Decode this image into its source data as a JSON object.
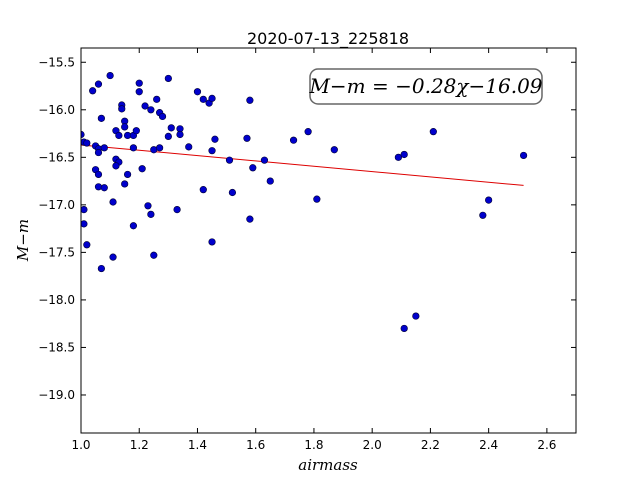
{
  "chart_data": {
    "type": "scatter",
    "title": "2020-07-13_225818",
    "xlabel": "airmass",
    "ylabel": "M−m",
    "xlim": [
      1.0,
      2.7
    ],
    "ylim": [
      -19.4,
      -15.35
    ],
    "y_inverted": true,
    "xticks": [
      1.0,
      1.2,
      1.4,
      1.6,
      1.8,
      2.0,
      2.2,
      2.4,
      2.6
    ],
    "xtick_labels": [
      "1.0",
      "1.2",
      "1.4",
      "1.6",
      "1.8",
      "2.0",
      "2.2",
      "2.4",
      "2.6"
    ],
    "yticks": [
      -15.5,
      -16.0,
      -16.5,
      -17.0,
      -17.5,
      -18.0,
      -18.5,
      -19.0
    ],
    "ytick_labels": [
      "−15.5",
      "−16.0",
      "−16.5",
      "−17.0",
      "−17.5",
      "−18.0",
      "−18.5",
      "−19.0"
    ],
    "annotation": "M−m = −0.28χ−16.09",
    "point_color": "#0000cc",
    "fit_color": "#dd0000",
    "fit": {
      "slope": -0.28,
      "intercept": -16.09,
      "x_range": [
        1.0,
        2.52
      ]
    },
    "points": [
      {
        "x": 1.0,
        "y": -16.26
      },
      {
        "x": 1.01,
        "y": -16.34
      },
      {
        "x": 1.02,
        "y": -16.35
      },
      {
        "x": 1.01,
        "y": -17.05
      },
      {
        "x": 1.01,
        "y": -17.2
      },
      {
        "x": 1.02,
        "y": -17.42
      },
      {
        "x": 1.04,
        "y": -15.8
      },
      {
        "x": 1.06,
        "y": -15.73
      },
      {
        "x": 1.1,
        "y": -15.64
      },
      {
        "x": 1.07,
        "y": -16.09
      },
      {
        "x": 1.05,
        "y": -16.38
      },
      {
        "x": 1.06,
        "y": -16.41
      },
      {
        "x": 1.06,
        "y": -16.45
      },
      {
        "x": 1.08,
        "y": -16.4
      },
      {
        "x": 1.05,
        "y": -16.63
      },
      {
        "x": 1.06,
        "y": -16.68
      },
      {
        "x": 1.06,
        "y": -16.81
      },
      {
        "x": 1.08,
        "y": -16.82
      },
      {
        "x": 1.11,
        "y": -16.97
      },
      {
        "x": 1.07,
        "y": -17.67
      },
      {
        "x": 1.11,
        "y": -17.55
      },
      {
        "x": 1.12,
        "y": -16.22
      },
      {
        "x": 1.13,
        "y": -16.27
      },
      {
        "x": 1.14,
        "y": -15.95
      },
      {
        "x": 1.14,
        "y": -15.99
      },
      {
        "x": 1.15,
        "y": -16.12
      },
      {
        "x": 1.15,
        "y": -16.18
      },
      {
        "x": 1.16,
        "y": -16.27
      },
      {
        "x": 1.12,
        "y": -16.52
      },
      {
        "x": 1.13,
        "y": -16.55
      },
      {
        "x": 1.12,
        "y": -16.59
      },
      {
        "x": 1.16,
        "y": -16.68
      },
      {
        "x": 1.15,
        "y": -16.78
      },
      {
        "x": 1.18,
        "y": -16.27
      },
      {
        "x": 1.18,
        "y": -16.4
      },
      {
        "x": 1.19,
        "y": -16.22
      },
      {
        "x": 1.2,
        "y": -15.72
      },
      {
        "x": 1.2,
        "y": -15.81
      },
      {
        "x": 1.22,
        "y": -15.96
      },
      {
        "x": 1.24,
        "y": -16.0
      },
      {
        "x": 1.21,
        "y": -16.62
      },
      {
        "x": 1.18,
        "y": -17.22
      },
      {
        "x": 1.23,
        "y": -17.01
      },
      {
        "x": 1.24,
        "y": -17.1
      },
      {
        "x": 1.25,
        "y": -17.53
      },
      {
        "x": 1.26,
        "y": -15.89
      },
      {
        "x": 1.27,
        "y": -16.03
      },
      {
        "x": 1.28,
        "y": -16.07
      },
      {
        "x": 1.3,
        "y": -15.67
      },
      {
        "x": 1.3,
        "y": -16.28
      },
      {
        "x": 1.31,
        "y": -16.19
      },
      {
        "x": 1.25,
        "y": -16.42
      },
      {
        "x": 1.27,
        "y": -16.4
      },
      {
        "x": 1.33,
        "y": -17.05
      },
      {
        "x": 1.34,
        "y": -16.2
      },
      {
        "x": 1.34,
        "y": -16.26
      },
      {
        "x": 1.37,
        "y": -16.39
      },
      {
        "x": 1.4,
        "y": -15.81
      },
      {
        "x": 1.42,
        "y": -15.89
      },
      {
        "x": 1.44,
        "y": -15.93
      },
      {
        "x": 1.45,
        "y": -15.88
      },
      {
        "x": 1.46,
        "y": -16.31
      },
      {
        "x": 1.45,
        "y": -16.43
      },
      {
        "x": 1.42,
        "y": -16.84
      },
      {
        "x": 1.45,
        "y": -17.39
      },
      {
        "x": 1.51,
        "y": -16.53
      },
      {
        "x": 1.52,
        "y": -16.87
      },
      {
        "x": 1.57,
        "y": -16.3
      },
      {
        "x": 1.58,
        "y": -15.9
      },
      {
        "x": 1.59,
        "y": -16.61
      },
      {
        "x": 1.58,
        "y": -17.15
      },
      {
        "x": 1.63,
        "y": -16.53
      },
      {
        "x": 1.65,
        "y": -16.75
      },
      {
        "x": 1.73,
        "y": -16.32
      },
      {
        "x": 1.78,
        "y": -16.23
      },
      {
        "x": 1.81,
        "y": -16.94
      },
      {
        "x": 1.87,
        "y": -16.42
      },
      {
        "x": 2.09,
        "y": -16.5
      },
      {
        "x": 2.11,
        "y": -16.47
      },
      {
        "x": 2.11,
        "y": -18.3
      },
      {
        "x": 2.15,
        "y": -18.17
      },
      {
        "x": 2.21,
        "y": -16.23
      },
      {
        "x": 2.38,
        "y": -17.11
      },
      {
        "x": 2.4,
        "y": -16.95
      },
      {
        "x": 2.52,
        "y": -16.48
      }
    ]
  }
}
